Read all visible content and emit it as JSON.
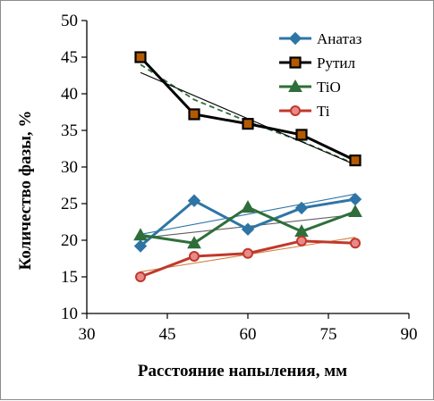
{
  "chart_data": {
    "type": "line",
    "xlabel": "Расстояние напыления, мм",
    "ylabel": "Количество фазы, %",
    "xlim": [
      30,
      90
    ],
    "ylim": [
      10,
      50
    ],
    "xticks": [
      30,
      45,
      60,
      75,
      90
    ],
    "yticks": [
      10,
      15,
      20,
      25,
      30,
      35,
      40,
      45,
      50
    ],
    "grid": false,
    "legend_position": "top-right",
    "x": [
      40,
      50,
      60,
      70,
      80
    ],
    "series": [
      {
        "name": "Анатаз",
        "values": [
          19.2,
          25.4,
          21.5,
          24.4,
          25.6
        ],
        "color": "#2e75a6",
        "marker": "diamond",
        "trendline": {
          "type": "linear",
          "from": [
            40,
            20.8
          ],
          "to": [
            80,
            26.3
          ],
          "color": "#2e75a6",
          "style": "solid"
        }
      },
      {
        "name": "Рутил",
        "values": [
          45.0,
          37.2,
          35.9,
          34.4,
          30.9
        ],
        "color": "#000000",
        "marker": "square",
        "marker_fill": "#b35a00",
        "trendline": {
          "type": "linear",
          "from": [
            40,
            42.9
          ],
          "to": [
            80,
            30.3
          ],
          "color": "#000000",
          "style": "solid"
        },
        "trendline2": {
          "type": "poly",
          "points": [
            [
              40,
              44.0
            ],
            [
              50,
              39.2
            ],
            [
              60,
              36.2
            ],
            [
              70,
              33.5
            ],
            [
              80,
              30.4
            ]
          ],
          "color": "#2f6e3a",
          "style": "dashed"
        }
      },
      {
        "name": "TiO",
        "values": [
          20.7,
          19.6,
          24.5,
          21.2,
          23.9
        ],
        "color": "#2f6e3a",
        "marker": "triangle",
        "trendline": {
          "type": "linear",
          "from": [
            40,
            20.3
          ],
          "to": [
            80,
            23.5
          ],
          "color": "#606060",
          "style": "solid"
        }
      },
      {
        "name": "Ti",
        "values": [
          15.0,
          17.8,
          18.2,
          19.9,
          19.6
        ],
        "color": "#c0392b",
        "marker": "circle",
        "trendline": {
          "type": "linear",
          "from": [
            40,
            15.7
          ],
          "to": [
            80,
            20.4
          ],
          "color": "#d08040",
          "style": "solid"
        }
      }
    ]
  }
}
